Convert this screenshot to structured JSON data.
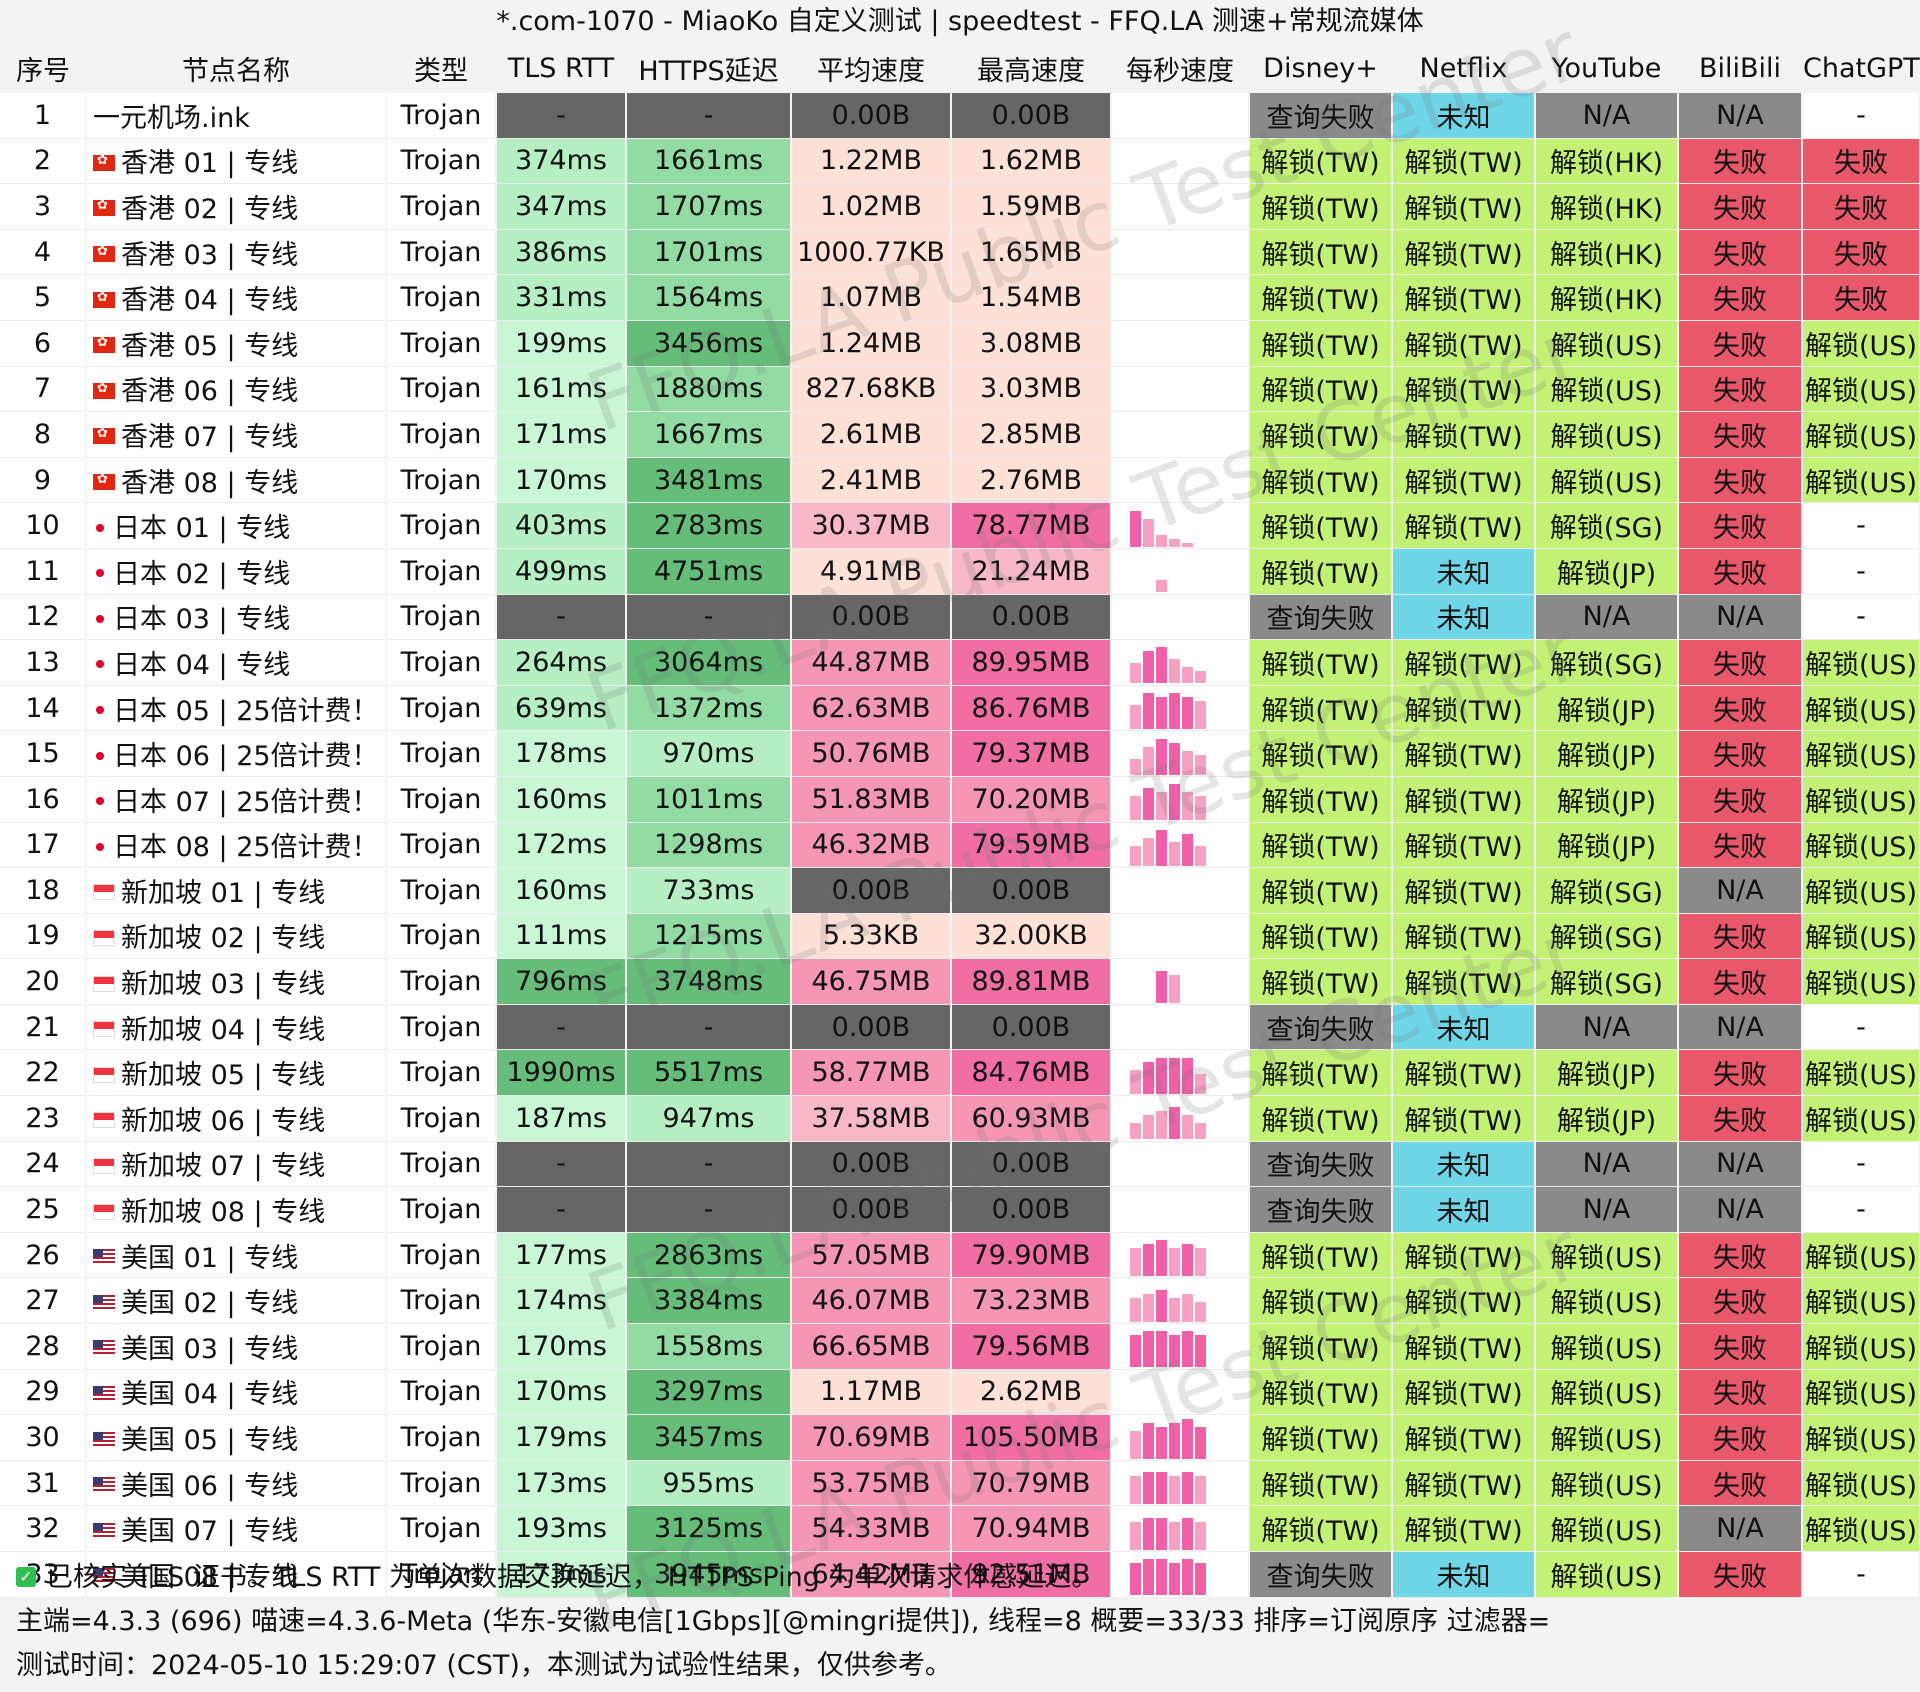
{
  "title": "*.com-1070 - MiaoKo 自定义测试 | speedtest - FFQ.LA 测速+常规流媒体",
  "headers": [
    "序号",
    "节点名称",
    "类型",
    "TLS RTT",
    "HTTPS延迟",
    "平均速度",
    "最高速度",
    "每秒速度",
    "Disney+",
    "Netflix",
    "YouTube",
    "BiliBili",
    "ChatGPT"
  ],
  "colors": {
    "unlock": "#c3f176",
    "fail": "#e8576a",
    "unknown": "#6fd6e8",
    "na": "#8a8a8a",
    "rtt_green": "#b5efc3",
    "https_green": "#66bd7a",
    "speed_peach": "#fde1d6",
    "speed_pink": "#f06ea4",
    "error_gray": "#666666"
  },
  "rows": [
    {
      "idx": "1",
      "flag": "none",
      "name": "一元机场.ink",
      "type": "Trojan",
      "rtt": "-",
      "https": "-",
      "avg": "0.00B",
      "max": "0.00B",
      "spark": [],
      "disney": "查询失败",
      "netflix": "未知",
      "youtube": "N/A",
      "bilibili": "N/A",
      "chatgpt": "-"
    },
    {
      "idx": "2",
      "flag": "hk",
      "name": "香港 01 | 专线",
      "type": "Trojan",
      "rtt": "374ms",
      "https": "1661ms",
      "avg": "1.22MB",
      "max": "1.62MB",
      "spark": [],
      "disney": "解锁(TW)",
      "netflix": "解锁(TW)",
      "youtube": "解锁(HK)",
      "bilibili": "失败",
      "chatgpt": "失败"
    },
    {
      "idx": "3",
      "flag": "hk",
      "name": "香港 02 | 专线",
      "type": "Trojan",
      "rtt": "347ms",
      "https": "1707ms",
      "avg": "1.02MB",
      "max": "1.59MB",
      "spark": [],
      "disney": "解锁(TW)",
      "netflix": "解锁(TW)",
      "youtube": "解锁(HK)",
      "bilibili": "失败",
      "chatgpt": "失败"
    },
    {
      "idx": "4",
      "flag": "hk",
      "name": "香港 03 | 专线",
      "type": "Trojan",
      "rtt": "386ms",
      "https": "1701ms",
      "avg": "1000.77KB",
      "max": "1.65MB",
      "spark": [],
      "disney": "解锁(TW)",
      "netflix": "解锁(TW)",
      "youtube": "解锁(HK)",
      "bilibili": "失败",
      "chatgpt": "失败"
    },
    {
      "idx": "5",
      "flag": "hk",
      "name": "香港 04 | 专线",
      "type": "Trojan",
      "rtt": "331ms",
      "https": "1564ms",
      "avg": "1.07MB",
      "max": "1.54MB",
      "spark": [],
      "disney": "解锁(TW)",
      "netflix": "解锁(TW)",
      "youtube": "解锁(HK)",
      "bilibili": "失败",
      "chatgpt": "失败"
    },
    {
      "idx": "6",
      "flag": "hk",
      "name": "香港 05 | 专线",
      "type": "Trojan",
      "rtt": "199ms",
      "https": "3456ms",
      "avg": "1.24MB",
      "max": "3.08MB",
      "spark": [],
      "disney": "解锁(TW)",
      "netflix": "解锁(TW)",
      "youtube": "解锁(US)",
      "bilibili": "失败",
      "chatgpt": "解锁(US)"
    },
    {
      "idx": "7",
      "flag": "hk",
      "name": "香港 06 | 专线",
      "type": "Trojan",
      "rtt": "161ms",
      "https": "1880ms",
      "avg": "827.68KB",
      "max": "3.03MB",
      "spark": [],
      "disney": "解锁(TW)",
      "netflix": "解锁(TW)",
      "youtube": "解锁(US)",
      "bilibili": "失败",
      "chatgpt": "解锁(US)"
    },
    {
      "idx": "8",
      "flag": "hk",
      "name": "香港 07 | 专线",
      "type": "Trojan",
      "rtt": "171ms",
      "https": "1667ms",
      "avg": "2.61MB",
      "max": "2.85MB",
      "spark": [],
      "disney": "解锁(TW)",
      "netflix": "解锁(TW)",
      "youtube": "解锁(US)",
      "bilibili": "失败",
      "chatgpt": "解锁(US)"
    },
    {
      "idx": "9",
      "flag": "hk",
      "name": "香港 08 | 专线",
      "type": "Trojan",
      "rtt": "170ms",
      "https": "3481ms",
      "avg": "2.41MB",
      "max": "2.76MB",
      "spark": [],
      "disney": "解锁(TW)",
      "netflix": "解锁(TW)",
      "youtube": "解锁(US)",
      "bilibili": "失败",
      "chatgpt": "解锁(US)"
    },
    {
      "idx": "10",
      "flag": "jp",
      "name": "日本 01 | 专线",
      "type": "Trojan",
      "rtt": "403ms",
      "https": "2783ms",
      "avg": "30.37MB",
      "max": "78.77MB",
      "spark": [
        0.9,
        0.7,
        0.3,
        0.2,
        0.1
      ],
      "disney": "解锁(TW)",
      "netflix": "解锁(TW)",
      "youtube": "解锁(SG)",
      "bilibili": "失败",
      "chatgpt": "-"
    },
    {
      "idx": "11",
      "flag": "jp",
      "name": "日本 02 | 专线",
      "type": "Trojan",
      "rtt": "499ms",
      "https": "4751ms",
      "avg": "4.91MB",
      "max": "21.24MB",
      "spark": [
        0,
        0,
        0.3,
        0,
        0
      ],
      "disney": "解锁(TW)",
      "netflix": "未知",
      "youtube": "解锁(JP)",
      "bilibili": "失败",
      "chatgpt": "-"
    },
    {
      "idx": "12",
      "flag": "jp",
      "name": "日本 03 | 专线",
      "type": "Trojan",
      "rtt": "-",
      "https": "-",
      "avg": "0.00B",
      "max": "0.00B",
      "spark": [],
      "disney": "查询失败",
      "netflix": "未知",
      "youtube": "N/A",
      "bilibili": "N/A",
      "chatgpt": "-"
    },
    {
      "idx": "13",
      "flag": "jp",
      "name": "日本 04 | 专线",
      "type": "Trojan",
      "rtt": "264ms",
      "https": "3064ms",
      "avg": "44.87MB",
      "max": "89.95MB",
      "spark": [
        0.5,
        0.8,
        0.9,
        0.6,
        0.4,
        0.3
      ],
      "disney": "解锁(TW)",
      "netflix": "解锁(TW)",
      "youtube": "解锁(SG)",
      "bilibili": "失败",
      "chatgpt": "解锁(US)"
    },
    {
      "idx": "14",
      "flag": "jp",
      "name": "日本 05 | 25倍计费！",
      "type": "Trojan",
      "rtt": "639ms",
      "https": "1372ms",
      "avg": "62.63MB",
      "max": "86.76MB",
      "spark": [
        0.6,
        0.9,
        0.8,
        0.9,
        0.8,
        0.7
      ],
      "disney": "解锁(TW)",
      "netflix": "解锁(TW)",
      "youtube": "解锁(JP)",
      "bilibili": "失败",
      "chatgpt": "解锁(US)"
    },
    {
      "idx": "15",
      "flag": "jp",
      "name": "日本 06 | 25倍计费！",
      "type": "Trojan",
      "rtt": "178ms",
      "https": "970ms",
      "avg": "50.76MB",
      "max": "79.37MB",
      "spark": [
        0.4,
        0.7,
        0.9,
        0.8,
        0.6,
        0.5
      ],
      "disney": "解锁(TW)",
      "netflix": "解锁(TW)",
      "youtube": "解锁(JP)",
      "bilibili": "失败",
      "chatgpt": "解锁(US)"
    },
    {
      "idx": "16",
      "flag": "jp",
      "name": "日本 07 | 25倍计费！",
      "type": "Trojan",
      "rtt": "160ms",
      "https": "1011ms",
      "avg": "51.83MB",
      "max": "70.20MB",
      "spark": [
        0.6,
        0.8,
        0.7,
        0.9,
        0.7,
        0.6
      ],
      "disney": "解锁(TW)",
      "netflix": "解锁(TW)",
      "youtube": "解锁(JP)",
      "bilibili": "失败",
      "chatgpt": "解锁(US)"
    },
    {
      "idx": "17",
      "flag": "jp",
      "name": "日本 08 | 25倍计费！",
      "type": "Trojan",
      "rtt": "172ms",
      "https": "1298ms",
      "avg": "46.32MB",
      "max": "79.59MB",
      "spark": [
        0.5,
        0.7,
        0.9,
        0.6,
        0.8,
        0.5
      ],
      "disney": "解锁(TW)",
      "netflix": "解锁(TW)",
      "youtube": "解锁(JP)",
      "bilibili": "失败",
      "chatgpt": "解锁(US)"
    },
    {
      "idx": "18",
      "flag": "sg",
      "name": "新加坡 01 | 专线",
      "type": "Trojan",
      "rtt": "160ms",
      "https": "733ms",
      "avg": "0.00B",
      "max": "0.00B",
      "spark": [],
      "disney": "解锁(TW)",
      "netflix": "解锁(TW)",
      "youtube": "解锁(SG)",
      "bilibili": "N/A",
      "chatgpt": "解锁(US)"
    },
    {
      "idx": "19",
      "flag": "sg",
      "name": "新加坡 02 | 专线",
      "type": "Trojan",
      "rtt": "111ms",
      "https": "1215ms",
      "avg": "5.33KB",
      "max": "32.00KB",
      "spark": [],
      "disney": "解锁(TW)",
      "netflix": "解锁(TW)",
      "youtube": "解锁(SG)",
      "bilibili": "失败",
      "chatgpt": "解锁(US)"
    },
    {
      "idx": "20",
      "flag": "sg",
      "name": "新加坡 03 | 专线",
      "type": "Trojan",
      "rtt": "796ms",
      "https": "3748ms",
      "avg": "46.75MB",
      "max": "89.81MB",
      "spark": [
        0,
        0,
        0.8,
        0.7,
        0,
        0
      ],
      "disney": "解锁(TW)",
      "netflix": "解锁(TW)",
      "youtube": "解锁(SG)",
      "bilibili": "失败",
      "chatgpt": "解锁(US)"
    },
    {
      "idx": "21",
      "flag": "sg",
      "name": "新加坡 04 | 专线",
      "type": "Trojan",
      "rtt": "-",
      "https": "-",
      "avg": "0.00B",
      "max": "0.00B",
      "spark": [],
      "disney": "查询失败",
      "netflix": "未知",
      "youtube": "N/A",
      "bilibili": "N/A",
      "chatgpt": "-"
    },
    {
      "idx": "22",
      "flag": "sg",
      "name": "新加坡 05 | 专线",
      "type": "Trojan",
      "rtt": "1990ms",
      "https": "5517ms",
      "avg": "58.77MB",
      "max": "84.76MB",
      "spark": [
        0.6,
        0.8,
        0.9,
        0.9,
        0.9,
        0.5
      ],
      "disney": "解锁(TW)",
      "netflix": "解锁(TW)",
      "youtube": "解锁(JP)",
      "bilibili": "失败",
      "chatgpt": "解锁(US)"
    },
    {
      "idx": "23",
      "flag": "sg",
      "name": "新加坡 06 | 专线",
      "type": "Trojan",
      "rtt": "187ms",
      "https": "947ms",
      "avg": "37.58MB",
      "max": "60.93MB",
      "spark": [
        0.4,
        0.6,
        0.7,
        0.8,
        0.6,
        0.4
      ],
      "disney": "解锁(TW)",
      "netflix": "解锁(TW)",
      "youtube": "解锁(JP)",
      "bilibili": "失败",
      "chatgpt": "解锁(US)"
    },
    {
      "idx": "24",
      "flag": "sg",
      "name": "新加坡 07 | 专线",
      "type": "Trojan",
      "rtt": "-",
      "https": "-",
      "avg": "0.00B",
      "max": "0.00B",
      "spark": [],
      "disney": "查询失败",
      "netflix": "未知",
      "youtube": "N/A",
      "bilibili": "N/A",
      "chatgpt": "-"
    },
    {
      "idx": "25",
      "flag": "sg",
      "name": "新加坡 08 | 专线",
      "type": "Trojan",
      "rtt": "-",
      "https": "-",
      "avg": "0.00B",
      "max": "0.00B",
      "spark": [],
      "disney": "查询失败",
      "netflix": "未知",
      "youtube": "N/A",
      "bilibili": "N/A",
      "chatgpt": "-"
    },
    {
      "idx": "26",
      "flag": "us",
      "name": "美国 01 | 专线",
      "type": "Trojan",
      "rtt": "177ms",
      "https": "2863ms",
      "avg": "57.05MB",
      "max": "79.90MB",
      "spark": [
        0.7,
        0.8,
        0.9,
        0.7,
        0.8,
        0.7
      ],
      "disney": "解锁(TW)",
      "netflix": "解锁(TW)",
      "youtube": "解锁(US)",
      "bilibili": "失败",
      "chatgpt": "解锁(US)"
    },
    {
      "idx": "27",
      "flag": "us",
      "name": "美国 02 | 专线",
      "type": "Trojan",
      "rtt": "174ms",
      "https": "3384ms",
      "avg": "46.07MB",
      "max": "73.23MB",
      "spark": [
        0.6,
        0.7,
        0.8,
        0.6,
        0.7,
        0.5
      ],
      "disney": "解锁(TW)",
      "netflix": "解锁(TW)",
      "youtube": "解锁(US)",
      "bilibili": "失败",
      "chatgpt": "解锁(US)"
    },
    {
      "idx": "28",
      "flag": "us",
      "name": "美国 03 | 专线",
      "type": "Trojan",
      "rtt": "170ms",
      "https": "1558ms",
      "avg": "66.65MB",
      "max": "79.56MB",
      "spark": [
        0.8,
        0.9,
        0.9,
        0.8,
        0.9,
        0.8
      ],
      "disney": "解锁(TW)",
      "netflix": "解锁(TW)",
      "youtube": "解锁(US)",
      "bilibili": "失败",
      "chatgpt": "解锁(US)"
    },
    {
      "idx": "29",
      "flag": "us",
      "name": "美国 04 | 专线",
      "type": "Trojan",
      "rtt": "170ms",
      "https": "3297ms",
      "avg": "1.17MB",
      "max": "2.62MB",
      "spark": [],
      "disney": "解锁(TW)",
      "netflix": "解锁(TW)",
      "youtube": "解锁(US)",
      "bilibili": "失败",
      "chatgpt": "解锁(US)"
    },
    {
      "idx": "30",
      "flag": "us",
      "name": "美国 05 | 专线",
      "type": "Trojan",
      "rtt": "179ms",
      "https": "3457ms",
      "avg": "70.69MB",
      "max": "105.50MB",
      "spark": [
        0.7,
        0.9,
        0.8,
        0.9,
        1.0,
        0.8
      ],
      "disney": "解锁(TW)",
      "netflix": "解锁(TW)",
      "youtube": "解锁(US)",
      "bilibili": "失败",
      "chatgpt": "解锁(US)"
    },
    {
      "idx": "31",
      "flag": "us",
      "name": "美国 06 | 专线",
      "type": "Trojan",
      "rtt": "173ms",
      "https": "955ms",
      "avg": "53.75MB",
      "max": "70.79MB",
      "spark": [
        0.7,
        0.8,
        0.8,
        0.7,
        0.8,
        0.7
      ],
      "disney": "解锁(TW)",
      "netflix": "解锁(TW)",
      "youtube": "解锁(US)",
      "bilibili": "失败",
      "chatgpt": "解锁(US)"
    },
    {
      "idx": "32",
      "flag": "us",
      "name": "美国 07 | 专线",
      "type": "Trojan",
      "rtt": "193ms",
      "https": "3125ms",
      "avg": "54.33MB",
      "max": "70.94MB",
      "spark": [
        0.7,
        0.8,
        0.8,
        0.7,
        0.8,
        0.7
      ],
      "disney": "解锁(TW)",
      "netflix": "解锁(TW)",
      "youtube": "解锁(US)",
      "bilibili": "N/A",
      "chatgpt": "解锁(US)"
    },
    {
      "idx": "33",
      "flag": "us",
      "name": "美国 08 | 专线",
      "type": "Trojan",
      "rtt": "173ms",
      "https": "3945ms",
      "avg": "64.42MB",
      "max": "92.51MB",
      "spark": [
        0.8,
        0.9,
        0.9,
        0.8,
        0.9,
        0.8
      ],
      "disney": "查询失败",
      "netflix": "未知",
      "youtube": "解锁(US)",
      "bilibili": "失败",
      "chatgpt": "-"
    }
  ],
  "footer": {
    "line1": "已核实 TLS 证书。TLS RTT 为单次数据交换延迟， HTTPS Ping 为单次请求体感延迟。",
    "line2": "主端=4.3.3 (696) 喵速=4.3.6-Meta (华东-安徽电信[1Gbps][@mingri提供]), 线程=8 概要=33/33 排序=订阅原序 过滤器=",
    "line3": "测试时间：2024-05-10 15:29:07 (CST)，本测试为试验性结果，仅供参考。"
  },
  "watermark": "FFQ.LA Public Test Center"
}
